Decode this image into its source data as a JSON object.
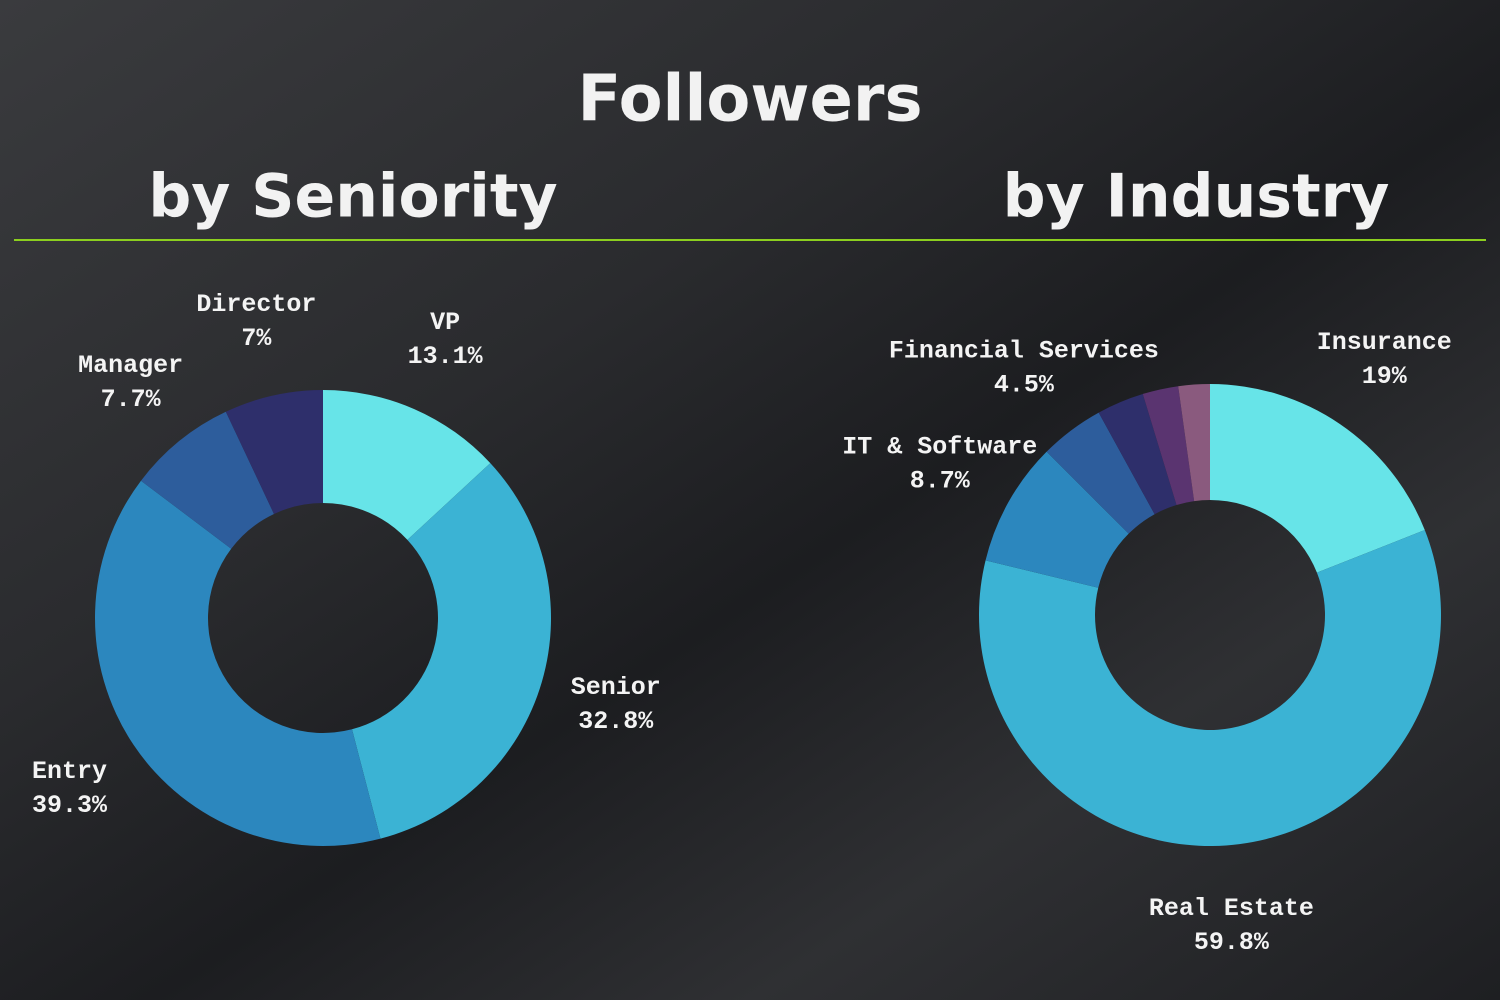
{
  "title": "Followers",
  "chart_data": [
    {
      "type": "donut",
      "title": "by Seniority",
      "categories": [
        "VP",
        "Senior",
        "Entry",
        "Manager",
        "Director"
      ],
      "values": [
        13.1,
        32.8,
        39.3,
        7.7,
        7
      ],
      "value_labels": [
        "13.1%",
        "32.8%",
        "39.3%",
        "7.7%",
        "7%"
      ],
      "colors": [
        "#67e4e8",
        "#3bb3d4",
        "#2c87be",
        "#2d5d9c",
        "#2e2f6b"
      ]
    },
    {
      "type": "donut",
      "title": "by Industry",
      "categories": [
        "Insurance",
        "Real Estate",
        "IT & Software",
        "Financial Services",
        null,
        null,
        null
      ],
      "values": [
        19,
        59.8,
        8.7,
        4.5,
        3.3,
        2.5,
        2.2
      ],
      "value_labels": [
        "19%",
        "59.8%",
        "8.7%",
        "4.5%",
        null,
        null,
        null
      ],
      "colors": [
        "#67e4e8",
        "#3bb3d4",
        "#2c87be",
        "#2d5d9c",
        "#2e2f6b",
        "#5a3470",
        "#8a5a7e"
      ]
    }
  ]
}
